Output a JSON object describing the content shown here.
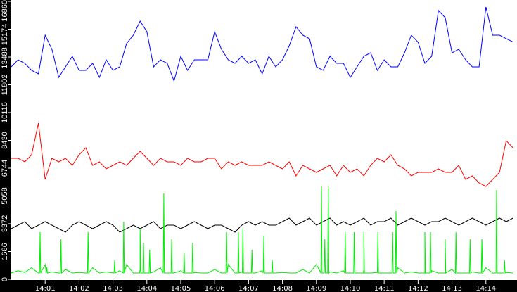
{
  "chart_data": {
    "type": "line",
    "title": "",
    "xlabel": "",
    "ylabel": "",
    "ylim": [
      0,
      16860
    ],
    "xlim": [
      "14:00:00",
      "14:14:55"
    ],
    "grid": false,
    "legend": "none",
    "background": "#ffffff",
    "axis_background": "#000000",
    "axis_text_color": "#ffffff",
    "y_ticks": [
      "0",
      "1686",
      "3372",
      "5058",
      "6744",
      "8430",
      "10116",
      "11802",
      "13488",
      "15174",
      "16860"
    ],
    "x_ticks": [
      "14:01",
      "14:02",
      "14:03",
      "14:04",
      "14:05",
      "14:06",
      "14:07",
      "14:08",
      "14:09",
      "14:10",
      "14:11",
      "14:12",
      "14:13",
      "14:14"
    ],
    "times": [
      "14:00:00",
      "14:00:12",
      "14:00:24",
      "14:00:36",
      "14:00:48",
      "14:01:00",
      "14:01:12",
      "14:01:24",
      "14:01:36",
      "14:01:48",
      "14:02:00",
      "14:02:12",
      "14:02:24",
      "14:02:36",
      "14:02:48",
      "14:03:00",
      "14:03:12",
      "14:03:24",
      "14:03:36",
      "14:03:48",
      "14:04:00",
      "14:04:12",
      "14:04:24",
      "14:04:36",
      "14:04:48",
      "14:05:00",
      "14:05:12",
      "14:05:24",
      "14:05:36",
      "14:05:48",
      "14:06:00",
      "14:06:12",
      "14:06:24",
      "14:06:36",
      "14:06:48",
      "14:07:00",
      "14:07:12",
      "14:07:24",
      "14:07:36",
      "14:07:48",
      "14:08:00",
      "14:08:12",
      "14:08:24",
      "14:08:36",
      "14:08:48",
      "14:09:00",
      "14:09:12",
      "14:09:24",
      "14:09:36",
      "14:09:48",
      "14:10:00",
      "14:10:12",
      "14:10:24",
      "14:10:36",
      "14:10:48",
      "14:11:00",
      "14:11:12",
      "14:11:24",
      "14:11:36",
      "14:11:48",
      "14:12:00",
      "14:12:12",
      "14:12:24",
      "14:12:36",
      "14:12:48",
      "14:13:00",
      "14:13:12",
      "14:13:24",
      "14:13:36",
      "14:13:48",
      "14:14:00",
      "14:14:12",
      "14:14:24",
      "14:14:36",
      "14:14:48"
    ],
    "series": [
      {
        "color": "#0000ff",
        "values": [
          12889,
          13316,
          13103,
          12676,
          12463,
          14810,
          13956,
          12249,
          12889,
          13530,
          12676,
          12676,
          13103,
          12249,
          13316,
          12676,
          12889,
          14298,
          14810,
          15664,
          15023,
          12889,
          13316,
          13103,
          12036,
          13530,
          12676,
          13316,
          13316,
          13316,
          15023,
          13956,
          13316,
          13103,
          13530,
          13103,
          13316,
          12463,
          13530,
          12889,
          13316,
          14170,
          15322,
          14810,
          14597,
          12889,
          12676,
          13530,
          13103,
          13103,
          12249,
          12889,
          13530,
          13743,
          12676,
          13316,
          12889,
          12889,
          13743,
          14810,
          14383,
          13103,
          13530,
          16304,
          15877,
          13743,
          13956,
          13316,
          12889,
          12889,
          16517,
          14810,
          14810,
          14600,
          14400
        ]
      },
      {
        "color": "#ff0000",
        "values": [
          7341,
          7341,
          7128,
          7554,
          9475,
          6061,
          7341,
          7128,
          7341,
          6914,
          7554,
          7981,
          6914,
          7128,
          6701,
          6914,
          7128,
          6914,
          7341,
          7768,
          7341,
          6914,
          7341,
          7128,
          7128,
          6914,
          7341,
          7128,
          7128,
          7341,
          7341,
          6701,
          7128,
          6914,
          7128,
          6914,
          6914,
          6914,
          7128,
          6914,
          6701,
          7128,
          6274,
          6914,
          6701,
          6487,
          6701,
          6914,
          6274,
          6914,
          6487,
          6701,
          6274,
          6914,
          7341,
          7128,
          7554,
          6914,
          6701,
          6274,
          6487,
          6487,
          6487,
          6701,
          6487,
          6487,
          6914,
          6061,
          6274,
          5847,
          5634,
          6061,
          6487,
          8408,
          7981
        ]
      },
      {
        "color": "#000000",
        "values": [
          3073,
          3286,
          3500,
          3073,
          3286,
          3500,
          3286,
          3073,
          2860,
          3286,
          3500,
          3286,
          3073,
          3286,
          3500,
          3286,
          2860,
          3073,
          3286,
          3073,
          3286,
          3500,
          3073,
          3286,
          3286,
          3073,
          3286,
          3500,
          3286,
          3073,
          3286,
          3286,
          3073,
          2860,
          3286,
          3500,
          3286,
          3500,
          3286,
          3286,
          3500,
          3713,
          3286,
          3500,
          3713,
          3286,
          3500,
          3713,
          3286,
          3500,
          3286,
          3500,
          3713,
          3286,
          3500,
          3500,
          3713,
          3286,
          3500,
          3713,
          3500,
          3286,
          3500,
          3500,
          3713,
          3500,
          3286,
          3500,
          3713,
          3500,
          3286,
          3500,
          3713,
          3500,
          3713
        ]
      },
      {
        "color": "#00ee00",
        "values": [
          384,
          520,
          420,
          700,
          384,
          900,
          450,
          384,
          600,
          384,
          420,
          384,
          700,
          384,
          450,
          384,
          520,
          900,
          384,
          600,
          384,
          450,
          700,
          384,
          384,
          520,
          384,
          420,
          384,
          384,
          600,
          384,
          900,
          384,
          450,
          384,
          384,
          520,
          384,
          384,
          420,
          384,
          384,
          600,
          384,
          900,
          384,
          450,
          384,
          520,
          384,
          384,
          600,
          384,
          420,
          384,
          384,
          700,
          384,
          450,
          384,
          384,
          520,
          384,
          384,
          600,
          384,
          384,
          450,
          384,
          700,
          384,
          384,
          420,
          384
        ],
        "spikes": [
          [
            "14:00:51",
            2860
          ],
          [
            "14:01:03",
            726
          ],
          [
            "14:01:28",
            2433
          ],
          [
            "14:02:16",
            2860
          ],
          [
            "14:03:03",
            1152
          ],
          [
            "14:03:19",
            3500
          ],
          [
            "14:03:48",
            3073
          ],
          [
            "14:03:54",
            2220
          ],
          [
            "14:04:05",
            1792
          ],
          [
            "14:04:30",
            5207
          ],
          [
            "14:04:44",
            2433
          ],
          [
            "14:05:06",
            1579
          ],
          [
            "14:05:21",
            2220
          ],
          [
            "14:06:21",
            2860
          ],
          [
            "14:06:42",
            2860
          ],
          [
            "14:06:50",
            3073
          ],
          [
            "14:07:06",
            1792
          ],
          [
            "14:07:27",
            2646
          ],
          [
            "14:07:42",
            1152
          ],
          [
            "14:09:09",
            5634
          ],
          [
            "14:09:15",
            2433
          ],
          [
            "14:09:21",
            5634
          ],
          [
            "14:09:51",
            2860
          ],
          [
            "14:10:07",
            2860
          ],
          [
            "14:10:24",
            2860
          ],
          [
            "14:10:49",
            2860
          ],
          [
            "14:11:15",
            2860
          ],
          [
            "14:11:21",
            4140
          ],
          [
            "14:12:12",
            2860
          ],
          [
            "14:12:22",
            2860
          ],
          [
            "14:12:48",
            2433
          ],
          [
            "14:13:07",
            2860
          ],
          [
            "14:13:32",
            2433
          ],
          [
            "14:13:53",
            2433
          ],
          [
            "14:14:19",
            5420
          ],
          [
            "14:14:33",
            1152
          ]
        ]
      }
    ]
  }
}
